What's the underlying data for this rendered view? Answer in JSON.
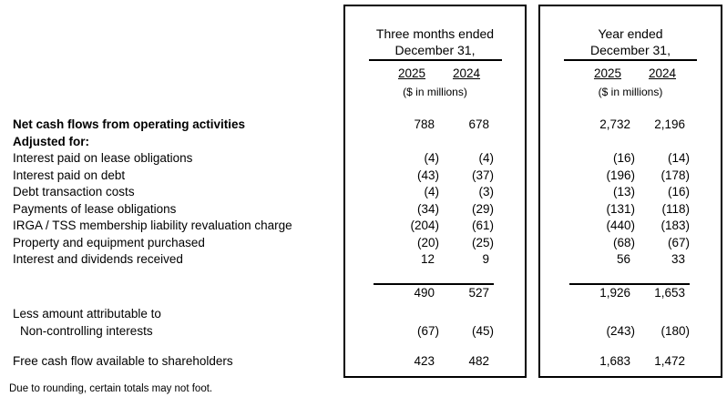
{
  "table": {
    "groups": [
      {
        "period_line1": "Three months ended",
        "period_line2": "December 31,",
        "years": [
          "2025",
          "2024"
        ],
        "units": "($ in millions)"
      },
      {
        "period_line1": "Year ended",
        "period_line2": "December 31,",
        "years": [
          "2025",
          "2024"
        ],
        "units": "($ in millions)"
      }
    ],
    "rows": [
      {
        "label": "Net cash flows from operating activities",
        "v": [
          "788",
          "678",
          "2,732",
          "2,196"
        ]
      },
      {
        "label": "Adjusted for:"
      },
      {
        "label": "Interest paid on lease obligations",
        "v": [
          "(4)",
          "(4)",
          "(16)",
          "(14)"
        ]
      },
      {
        "label": "Interest paid on debt",
        "v": [
          "(43)",
          "(37)",
          "(196)",
          "(178)"
        ]
      },
      {
        "label": "Debt transaction costs",
        "v": [
          "(4)",
          "(3)",
          "(13)",
          "(16)"
        ]
      },
      {
        "label": "Payments of lease obligations",
        "v": [
          "(34)",
          "(29)",
          "(131)",
          "(118)"
        ]
      },
      {
        "label": "IRGA / TSS membership liability revaluation charge",
        "v": [
          "(204)",
          "(61)",
          "(440)",
          "(183)"
        ]
      },
      {
        "label": "Property and equipment purchased",
        "v": [
          "(20)",
          "(25)",
          "(68)",
          "(67)"
        ]
      },
      {
        "label": "Interest and dividends received",
        "v": [
          "12",
          "9",
          "56",
          "33"
        ]
      },
      {
        "label": "Less amount attributable to"
      },
      {
        "label": "Non-controlling interests",
        "v": [
          "(67)",
          "(45)",
          "(243)",
          "(180)"
        ]
      },
      {
        "label": "Free cash flow available to shareholders",
        "v": [
          "423",
          "482",
          "1,683",
          "1,472"
        ]
      }
    ],
    "subtotal": {
      "v": [
        "490",
        "527",
        "1,926",
        "1,653"
      ]
    },
    "footnote": "Due to rounding, certain totals may not foot.",
    "colors": {
      "text": "#000000",
      "border": "#000000",
      "background": "#ffffff"
    }
  }
}
